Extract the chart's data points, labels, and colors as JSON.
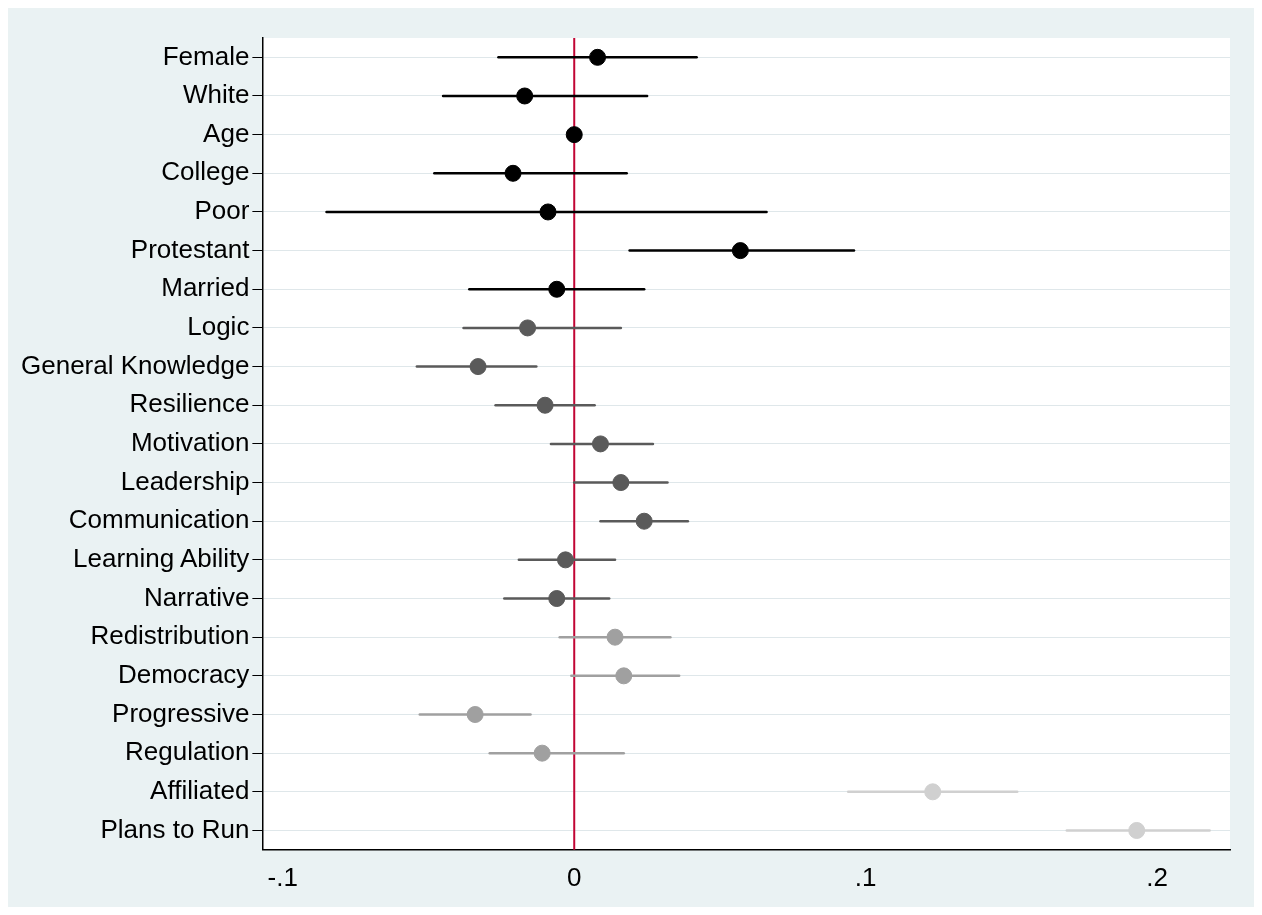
{
  "chart_data": {
    "type": "scatter",
    "orientation": "horizontal",
    "categories": [
      "Female",
      "White",
      "Age",
      "College",
      "Poor",
      "Protestant",
      "Married",
      "Logic",
      "General Knowledge",
      "Resilience",
      "Motivation",
      "Leadership",
      "Communication",
      "Learning Ability",
      "Narrative",
      "Redistribution",
      "Democracy",
      "Progressive",
      "Regulation",
      "Affiliated",
      "Plans to Run"
    ],
    "series": [
      {
        "color": "#000000",
        "values": [
          0.008,
          -0.017,
          0.0,
          -0.021,
          -0.009,
          0.057,
          -0.006,
          null,
          null,
          null,
          null,
          null,
          null,
          null,
          null,
          null,
          null,
          null,
          null,
          null,
          null
        ],
        "errors": [
          [
            -0.026,
            0.042
          ],
          [
            -0.045,
            0.025
          ],
          null,
          [
            -0.048,
            0.018
          ],
          [
            -0.085,
            0.066
          ],
          [
            0.019,
            0.096
          ],
          [
            -0.036,
            0.024
          ],
          null,
          null,
          null,
          null,
          null,
          null,
          null,
          null,
          null,
          null,
          null,
          null,
          null,
          null
        ]
      },
      {
        "color": "#5a5a5a",
        "values": [
          null,
          null,
          null,
          null,
          null,
          null,
          null,
          -0.016,
          -0.033,
          -0.01,
          0.009,
          0.016,
          0.024,
          -0.003,
          -0.006,
          null,
          null,
          null,
          null,
          null,
          null
        ],
        "errors": [
          null,
          null,
          null,
          null,
          null,
          null,
          null,
          [
            -0.038,
            0.016
          ],
          [
            -0.054,
            -0.013
          ],
          [
            -0.027,
            0.007
          ],
          [
            -0.008,
            0.027
          ],
          [
            0.0,
            0.032
          ],
          [
            0.009,
            0.039
          ],
          [
            -0.019,
            0.014
          ],
          [
            -0.024,
            0.012
          ],
          null,
          null,
          null,
          null,
          null,
          null
        ]
      },
      {
        "color": "#a0a0a0",
        "values": [
          null,
          null,
          null,
          null,
          null,
          null,
          null,
          null,
          null,
          null,
          null,
          null,
          null,
          null,
          null,
          0.014,
          0.017,
          -0.034,
          -0.011,
          null,
          null
        ],
        "errors": [
          null,
          null,
          null,
          null,
          null,
          null,
          null,
          null,
          null,
          null,
          null,
          null,
          null,
          null,
          null,
          [
            -0.005,
            0.033
          ],
          [
            -0.001,
            0.036
          ],
          [
            -0.053,
            -0.015
          ],
          [
            -0.029,
            0.017
          ],
          null,
          null
        ]
      },
      {
        "color": "#d0d0d0",
        "values": [
          null,
          null,
          null,
          null,
          null,
          null,
          null,
          null,
          null,
          null,
          null,
          null,
          null,
          null,
          null,
          null,
          null,
          null,
          null,
          0.123,
          0.193
        ],
        "errors": [
          null,
          null,
          null,
          null,
          null,
          null,
          null,
          null,
          null,
          null,
          null,
          null,
          null,
          null,
          null,
          null,
          null,
          null,
          null,
          [
            0.094,
            0.152
          ],
          [
            0.169,
            0.218
          ]
        ]
      }
    ],
    "xlim": [
      -0.107,
      0.225
    ],
    "xticks": [
      {
        "value": -0.1,
        "label": "-.1"
      },
      0,
      {
        "value": 0.1,
        "label": ".1"
      },
      {
        "value": 0.2,
        "label": ".2"
      }
    ],
    "ref_lines": [
      {
        "axis": "x",
        "value": 0,
        "color": "#c10534"
      }
    ],
    "grid": "y",
    "marker": "circle",
    "legend": false
  }
}
